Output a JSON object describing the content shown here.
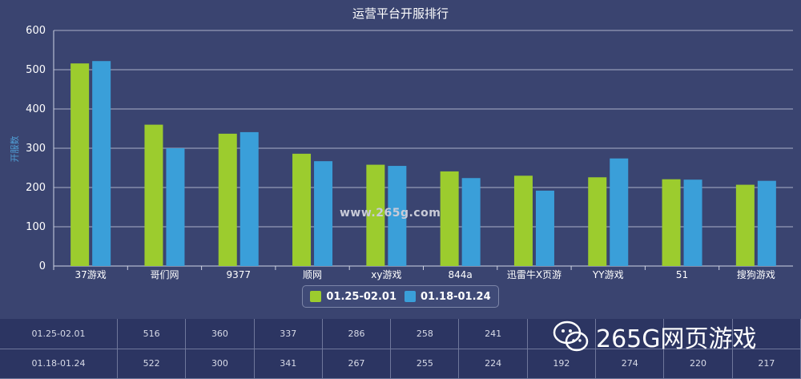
{
  "chart_data": {
    "type": "bar",
    "title": "运营平台开服排行",
    "ylabel": "开服数",
    "xlabel": "",
    "ylim": [
      0,
      600
    ],
    "yticks": [
      0,
      100,
      200,
      300,
      400,
      500,
      600
    ],
    "categories": [
      "37游戏",
      "哥们网",
      "9377",
      "顺网",
      "xy游戏",
      "844a",
      "迅雷牛X页游",
      "YY游戏",
      "51",
      "搜狗游戏"
    ],
    "series": [
      {
        "name": "01.25-02.01",
        "color": "#9ccc2e",
        "values": [
          516,
          360,
          337,
          286,
          258,
          241,
          230,
          226,
          221,
          207
        ]
      },
      {
        "name": "01.18-01.24",
        "color": "#3a9fd9",
        "values": [
          522,
          300,
          341,
          267,
          255,
          224,
          192,
          274,
          220,
          217
        ]
      }
    ],
    "grid": true,
    "legend_position": "bottom-center"
  },
  "watermark": "www.265g.com",
  "table": {
    "rows": [
      {
        "label": "01.25-02.01",
        "cells": [
          "516",
          "360",
          "337",
          "286",
          "258",
          "241",
          "",
          "",
          "",
          ""
        ]
      },
      {
        "label": "01.18-01.24",
        "cells": [
          "522",
          "300",
          "341",
          "267",
          "255",
          "224",
          "192",
          "274",
          "220",
          "217"
        ]
      }
    ]
  },
  "brand": {
    "text": "265G网页游戏"
  }
}
